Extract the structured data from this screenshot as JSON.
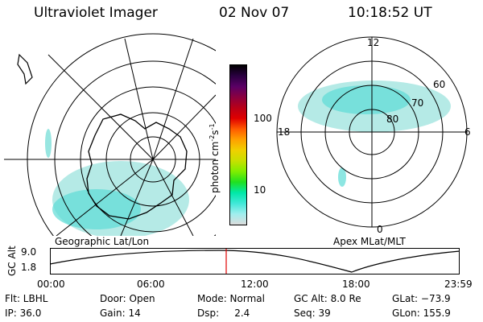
{
  "header": {
    "instrument": "Ultraviolet Imager",
    "date": "02 Nov 07",
    "time": "10:18:52 UT"
  },
  "left_map": {
    "caption": "Geographic Lat/Lon"
  },
  "right_map": {
    "caption": "Apex MLat/MLT",
    "hour_labels": {
      "top": "12",
      "left": "18",
      "right": "6",
      "bottom": "0"
    },
    "lat_labels": [
      "60",
      "70",
      "80"
    ]
  },
  "colorbar": {
    "unit_prefix": "photon cm",
    "unit_exp1": "-2",
    "unit_mid": "s",
    "unit_exp2": "-1",
    "ticks": [
      "100",
      "10"
    ],
    "colors": [
      "#000000",
      "#2a0040",
      "#5a0066",
      "#8a0040",
      "#b80018",
      "#e00000",
      "#ff5a00",
      "#ffa000",
      "#f0d000",
      "#c8e000",
      "#80ee00",
      "#20e020",
      "#00e8a8",
      "#40e8d8",
      "#a0eeee",
      "#dcdcdc"
    ]
  },
  "altitude_plot": {
    "ylabel": "GC Alt",
    "yticks": [
      "9.0",
      "1.8"
    ],
    "xticks": [
      "00:00",
      "06:00",
      "12:00",
      "18:00",
      "23:59"
    ],
    "current_time_fraction": 0.43
  },
  "info": {
    "flt": "Flt: LBHL",
    "ip": "IP: 36.0",
    "door": "Door: Open",
    "gain": "Gain: 14",
    "mode": "Mode: Normal",
    "dsp": "Dsp:     2.4",
    "gcalt": "GC Alt: 8.0 Re",
    "seq": "Seq: 39",
    "glat": "GLat: −73.9",
    "glon": "GLon: 155.9"
  }
}
